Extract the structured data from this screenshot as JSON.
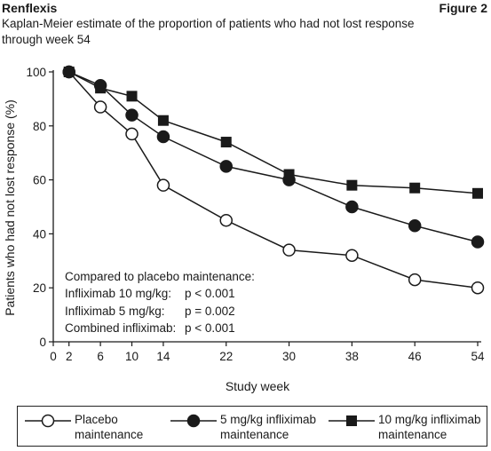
{
  "header": {
    "brand": "Renflexis",
    "figure": "Figure 2"
  },
  "subtitle": "Kaplan-Meier estimate of the proportion of patients who had not lost response through week 54",
  "annotation": {
    "heading": "Compared to placebo maintenance:",
    "lines": [
      {
        "label": "Infliximab 10 mg/kg:",
        "value": "p < 0.001"
      },
      {
        "label": "Infliximab 5 mg/kg:",
        "value": "p = 0.002"
      },
      {
        "label": "Combined infliximab:",
        "value": "p < 0.001"
      }
    ]
  },
  "legend": [
    {
      "label": "Placebo\nmaintenance",
      "marker": "open-circle"
    },
    {
      "label": "5 mg/kg infliximab\nmaintenance",
      "marker": "filled-circle"
    },
    {
      "label": "10 mg/kg infliximab\nmaintenance",
      "marker": "filled-square"
    }
  ],
  "chart_data": {
    "type": "line",
    "xlabel": "Study week",
    "ylabel": "Patients who had not lost response (%)",
    "xlim": [
      0,
      54
    ],
    "ylim": [
      0,
      100
    ],
    "xticks": [
      0,
      2,
      6,
      10,
      14,
      22,
      30,
      38,
      46,
      54
    ],
    "yticks": [
      0,
      20,
      40,
      60,
      80,
      100
    ],
    "grid": false,
    "colors": {
      "line": "#1a1a1a",
      "marker_fill_open": "#ffffff",
      "marker_fill_solid": "#1a1a1a"
    },
    "x": [
      2,
      6,
      10,
      14,
      22,
      30,
      38,
      46,
      54
    ],
    "series": [
      {
        "name": "Placebo maintenance",
        "marker": "open-circle",
        "values": [
          100,
          87,
          77,
          58,
          45,
          34,
          32,
          23,
          20
        ]
      },
      {
        "name": "5 mg/kg infliximab maintenance",
        "marker": "filled-circle",
        "values": [
          100,
          95,
          84,
          76,
          65,
          60,
          50,
          43,
          37
        ]
      },
      {
        "name": "10 mg/kg infliximab maintenance",
        "marker": "filled-square",
        "values": [
          100,
          94,
          91,
          82,
          74,
          62,
          58,
          57,
          55
        ]
      }
    ]
  }
}
